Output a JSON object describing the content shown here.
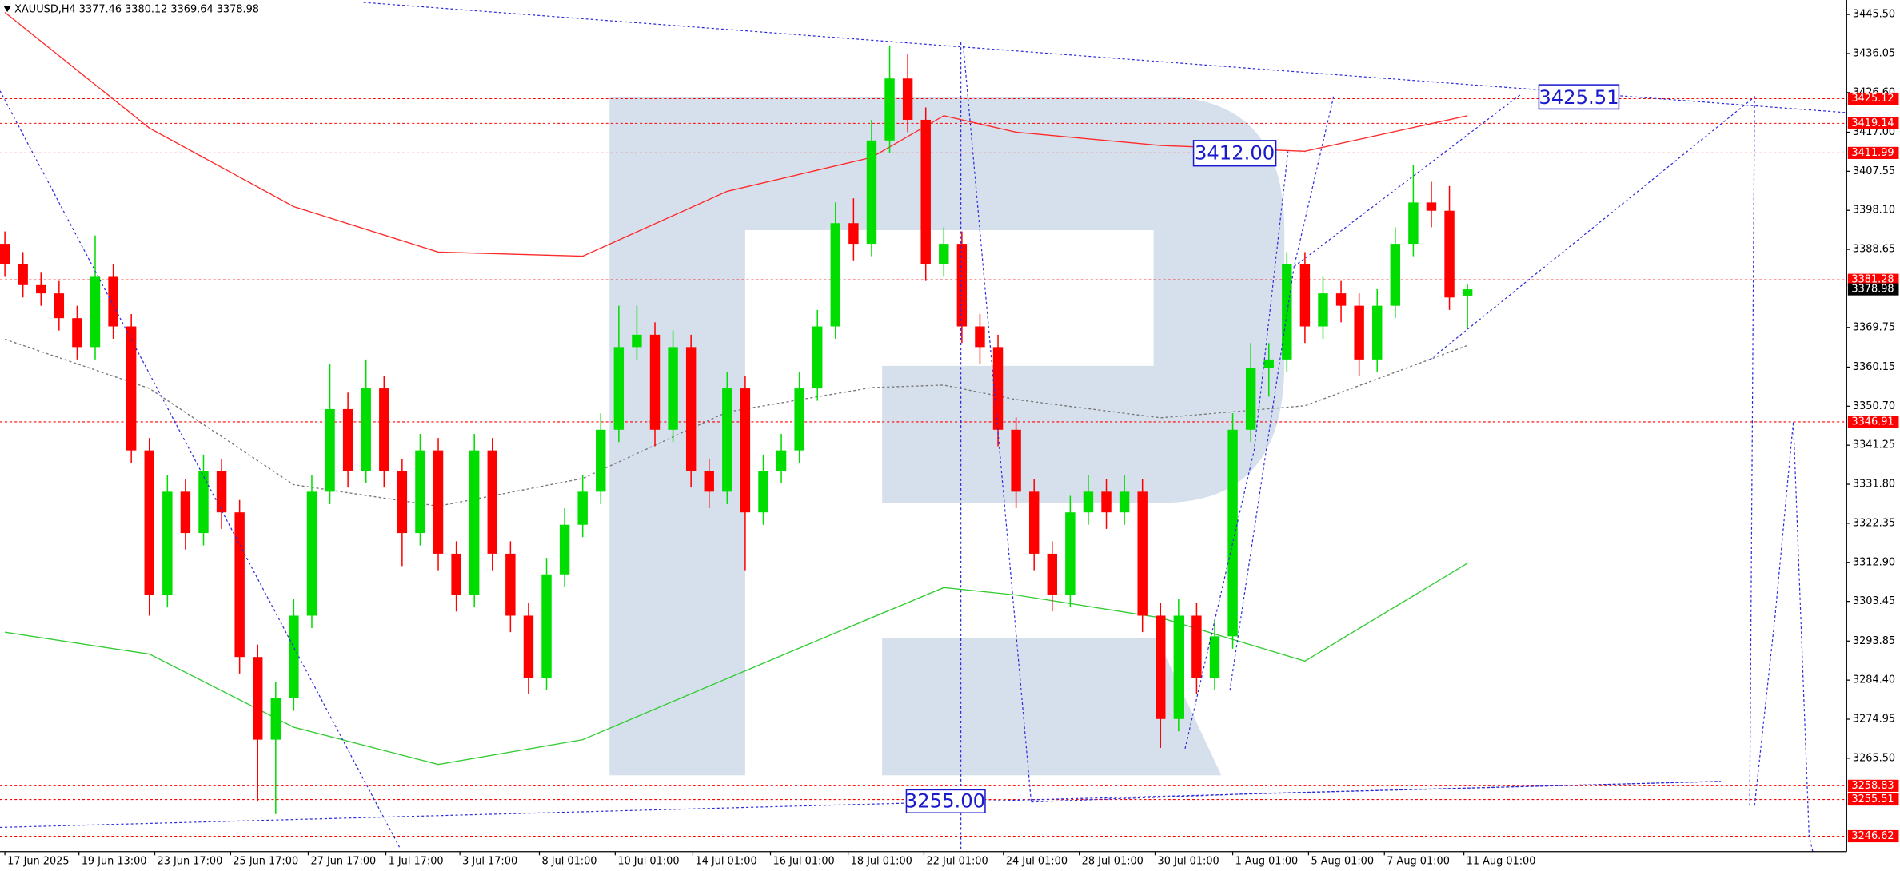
{
  "chart_data": {
    "type": "candlestick",
    "title": "XAUUSD,H4 3377.46 3380.12 3369.64 3378.98",
    "up_color": "#00dd00",
    "down_color": "#ff0000",
    "xlim": [
      -0.27,
      102
    ],
    "ylim": [
      3242.9,
      3449.0
    ],
    "yticks": [
      {
        "value": 3445.5,
        "label": "3445.50"
      },
      {
        "value": 3436.05,
        "label": "3436.05"
      },
      {
        "value": 3426.6,
        "label": "3426.60"
      },
      {
        "value": 3417,
        "label": "3417.00"
      },
      {
        "value": 3407.55,
        "label": "3407.55"
      },
      {
        "value": 3398.1,
        "label": "3398.10"
      },
      {
        "value": 3388.65,
        "label": "3388.65"
      },
      {
        "value": 3369.75,
        "label": "3369.75"
      },
      {
        "value": 3360.15,
        "label": "3360.15"
      },
      {
        "value": 3350.7,
        "label": "3350.70"
      },
      {
        "value": 3341.25,
        "label": "3341.25"
      },
      {
        "value": 3331.8,
        "label": "3331.80"
      },
      {
        "value": 3322.35,
        "label": "3322.35"
      },
      {
        "value": 3312.9,
        "label": "3312.90"
      },
      {
        "value": 3303.45,
        "label": "3303.45"
      },
      {
        "value": 3293.85,
        "label": "3293.85"
      },
      {
        "value": 3284.4,
        "label": "3284.40"
      },
      {
        "value": 3274.95,
        "label": "3274.95"
      },
      {
        "value": 3265.5,
        "label": "3265.50"
      }
    ],
    "xticks": [
      {
        "value": 0,
        "label": "17 Jun 2025"
      },
      {
        "value": 4.1,
        "label": "19 Jun 13:00"
      },
      {
        "value": 8.3,
        "label": "23 Jun 17:00"
      },
      {
        "value": 12.5,
        "label": "25 Jun 17:00"
      },
      {
        "value": 16.8,
        "label": "27 Jun 17:00"
      },
      {
        "value": 21.1,
        "label": "1 Jul 17:00"
      },
      {
        "value": 25.2,
        "label": "3 Jul 17:00"
      },
      {
        "value": 29.6,
        "label": "8 Jul 01:00"
      },
      {
        "value": 33.8,
        "label": "10 Jul 01:00"
      },
      {
        "value": 38.1,
        "label": "14 Jul 01:00"
      },
      {
        "value": 42.4,
        "label": "16 Jul 01:00"
      },
      {
        "value": 46.7,
        "label": "18 Jul 01:00"
      },
      {
        "value": 50.9,
        "label": "22 Jul 01:00"
      },
      {
        "value": 55.3,
        "label": "24 Jul 01:00"
      },
      {
        "value": 59.5,
        "label": "28 Jul 01:00"
      },
      {
        "value": 63.7,
        "label": "30 Jul 01:00"
      },
      {
        "value": 68.0,
        "label": "1 Aug 01:00"
      },
      {
        "value": 72.2,
        "label": "5 Aug 01:00"
      },
      {
        "value": 76.4,
        "label": "7 Aug 01:00"
      },
      {
        "value": 80.8,
        "label": "11 Aug 01:00"
      }
    ],
    "candles": [
      [
        3390,
        3393,
        3382,
        3385
      ],
      [
        3385,
        3388,
        3377,
        3380
      ],
      [
        3380,
        3383,
        3375,
        3378
      ],
      [
        3378,
        3381,
        3369,
        3372
      ],
      [
        3372,
        3375,
        3362,
        3365
      ],
      [
        3365,
        3392,
        3362,
        3382
      ],
      [
        3382,
        3385,
        3367,
        3370
      ],
      [
        3370,
        3373,
        3337,
        3340
      ],
      [
        3340,
        3343,
        3300,
        3305
      ],
      [
        3305,
        3334,
        3302,
        3330
      ],
      [
        3330,
        3333,
        3316,
        3320
      ],
      [
        3320,
        3339,
        3317,
        3335
      ],
      [
        3335,
        3338,
        3321,
        3325
      ],
      [
        3325,
        3328,
        3286,
        3290
      ],
      [
        3290,
        3293,
        3255,
        3270
      ],
      [
        3270,
        3284,
        3252,
        3280
      ],
      [
        3280,
        3304,
        3277,
        3300
      ],
      [
        3300,
        3334,
        3297,
        3330
      ],
      [
        3330,
        3361,
        3327,
        3350
      ],
      [
        3350,
        3354,
        3331,
        3335
      ],
      [
        3335,
        3362,
        3332,
        3355
      ],
      [
        3355,
        3358,
        3331,
        3335
      ],
      [
        3335,
        3338,
        3312,
        3320
      ],
      [
        3320,
        3344,
        3317,
        3340
      ],
      [
        3340,
        3343,
        3311,
        3315
      ],
      [
        3315,
        3318,
        3301,
        3305
      ],
      [
        3305,
        3344,
        3302,
        3340
      ],
      [
        3340,
        3343,
        3311,
        3315
      ],
      [
        3315,
        3318,
        3296,
        3300
      ],
      [
        3300,
        3303,
        3281,
        3285
      ],
      [
        3285,
        3314,
        3282,
        3310
      ],
      [
        3310,
        3326,
        3307,
        3322
      ],
      [
        3322,
        3334,
        3319,
        3330
      ],
      [
        3330,
        3349,
        3327,
        3345
      ],
      [
        3345,
        3375,
        3342,
        3365
      ],
      [
        3365,
        3375,
        3362,
        3368
      ],
      [
        3368,
        3371,
        3341,
        3345
      ],
      [
        3345,
        3369,
        3342,
        3365
      ],
      [
        3365,
        3368,
        3331,
        3335
      ],
      [
        3335,
        3338,
        3326,
        3330
      ],
      [
        3330,
        3359,
        3327,
        3355
      ],
      [
        3355,
        3358,
        3311,
        3325
      ],
      [
        3325,
        3339,
        3322,
        3335
      ],
      [
        3335,
        3344,
        3332,
        3340
      ],
      [
        3340,
        3359,
        3337,
        3355
      ],
      [
        3355,
        3374,
        3352,
        3370
      ],
      [
        3370,
        3400,
        3367,
        3395
      ],
      [
        3395,
        3401,
        3386,
        3390
      ],
      [
        3390,
        3420,
        3387,
        3415
      ],
      [
        3415,
        3438,
        3412,
        3430
      ],
      [
        3430,
        3436,
        3417,
        3420
      ],
      [
        3420,
        3423,
        3381,
        3385
      ],
      [
        3385,
        3394,
        3382,
        3390
      ],
      [
        3390,
        3393,
        3366,
        3370
      ],
      [
        3370,
        3373,
        3361,
        3365
      ],
      [
        3365,
        3368,
        3341,
        3345
      ],
      [
        3345,
        3348,
        3326,
        3330
      ],
      [
        3330,
        3333,
        3311,
        3315
      ],
      [
        3315,
        3318,
        3301,
        3305
      ],
      [
        3305,
        3329,
        3302,
        3325
      ],
      [
        3325,
        3334,
        3322,
        3330
      ],
      [
        3330,
        3333,
        3321,
        3325
      ],
      [
        3325,
        3334,
        3322,
        3330
      ],
      [
        3330,
        3333,
        3296,
        3300
      ],
      [
        3300,
        3303,
        3268,
        3275
      ],
      [
        3275,
        3304,
        3272,
        3300
      ],
      [
        3300,
        3303,
        3281,
        3285
      ],
      [
        3285,
        3299,
        3282,
        3295
      ],
      [
        3295,
        3349,
        3292,
        3345
      ],
      [
        3345,
        3366,
        3342,
        3360
      ],
      [
        3360,
        3366,
        3353,
        3362
      ],
      [
        3362,
        3388,
        3359,
        3385
      ],
      [
        3385,
        3388,
        3366,
        3370
      ],
      [
        3370,
        3382,
        3367,
        3378
      ],
      [
        3378,
        3381,
        3371,
        3375
      ],
      [
        3375,
        3378,
        3358,
        3362
      ],
      [
        3362,
        3379,
        3359,
        3375
      ],
      [
        3375,
        3394,
        3372,
        3390
      ],
      [
        3390,
        3409,
        3387,
        3400
      ],
      [
        3400,
        3405,
        3394,
        3398
      ],
      [
        3398,
        3404,
        3374,
        3377
      ],
      [
        3377.46,
        3380.12,
        3369.64,
        3378.98
      ]
    ],
    "ma_x": [
      0,
      8,
      16,
      24,
      32,
      40,
      48,
      52,
      56,
      64,
      72,
      81
    ],
    "series": [
      {
        "color": "#ff2a2a",
        "dash": false,
        "values": [
          3446,
          3418,
          3399,
          3388,
          3387,
          3402.7,
          3410.9,
          3421,
          3417,
          3413.8,
          3412.4,
          3421
        ]
      },
      {
        "color": "#33cc33",
        "dash": false,
        "values": [
          3296,
          3290.7,
          3273,
          3264,
          3270,
          3284.8,
          3299.5,
          3306.8,
          3305,
          3299.5,
          3289,
          3312.7
        ]
      },
      {
        "color": "#777777",
        "dash": true,
        "values": [
          3366.9,
          3355,
          3331.7,
          3326.5,
          3333.2,
          3349.3,
          3355.2,
          3355.8,
          3352.3,
          3347.9,
          3350.8,
          3365.4
        ]
      }
    ],
    "price_levels": [
      3425.12,
      3419.14,
      3411.99,
      3381.28,
      3346.91,
      3258.83,
      3255.51,
      3246.62
    ],
    "last_price": 3378.98,
    "annotations": [
      {
        "label": "3425.51"
      },
      {
        "label": "3412.00"
      },
      {
        "label": "3255.00"
      }
    ]
  }
}
